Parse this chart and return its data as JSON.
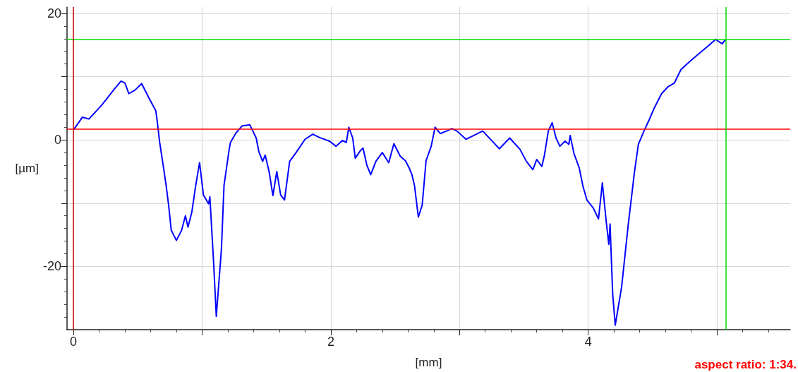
{
  "chart_data": {
    "type": "line",
    "xlabel": "[mm]",
    "ylabel": "[µm]",
    "xlim": [
      -0.05,
      5.57
    ],
    "ylim": [
      -30,
      21
    ],
    "xticks": [
      0,
      {
        "value": 1,
        "label": null
      },
      2,
      {
        "value": 3,
        "label": null
      },
      4,
      {
        "value": 5,
        "label": null
      }
    ],
    "yticks": [
      -20,
      {
        "value": -10,
        "label": null
      },
      0,
      {
        "value": 10,
        "label": null
      },
      20
    ],
    "grid": true,
    "marker": "none",
    "line_style": "solid",
    "series": [
      {
        "color": "#0000ff",
        "x": [
          0.005,
          0.07,
          0.12,
          0.22,
          0.32,
          0.37,
          0.4,
          0.43,
          0.48,
          0.53,
          0.59,
          0.64,
          0.65,
          0.67,
          0.7,
          0.72,
          0.74,
          0.76,
          0.8,
          0.84,
          0.87,
          0.89,
          0.92,
          0.95,
          0.98,
          1.01,
          1.05,
          1.06,
          1.09,
          1.11,
          1.15,
          1.17,
          1.21,
          1.22,
          1.26,
          1.31,
          1.37,
          1.42,
          1.44,
          1.47,
          1.49,
          1.52,
          1.55,
          1.58,
          1.61,
          1.64,
          1.68,
          1.73,
          1.8,
          1.86,
          1.91,
          1.99,
          2.04,
          2.09,
          2.12,
          2.14,
          2.17,
          2.19,
          2.23,
          2.25,
          2.28,
          2.31,
          2.35,
          2.4,
          2.45,
          2.49,
          2.54,
          2.58,
          2.61,
          2.63,
          2.65,
          2.68,
          2.71,
          2.74,
          2.78,
          2.81,
          2.85,
          2.9,
          2.94,
          2.98,
          3.05,
          3.18,
          3.25,
          3.31,
          3.39,
          3.47,
          3.52,
          3.57,
          3.6,
          3.64,
          3.66,
          3.69,
          3.72,
          3.75,
          3.78,
          3.82,
          3.85,
          3.86,
          3.89,
          3.93,
          3.96,
          3.99,
          4.04,
          4.08,
          4.11,
          4.14,
          4.16,
          4.17,
          4.19,
          4.21,
          4.26,
          4.31,
          4.36,
          4.39,
          4.44,
          4.47,
          4.51,
          4.57,
          4.62,
          4.67,
          4.72,
          4.79,
          4.87,
          4.93,
          4.99,
          5.04,
          5.07
        ],
        "values": [
          1.7,
          3.6,
          3.3,
          5.5,
          8.1,
          9.3,
          9.0,
          7.3,
          7.9,
          8.9,
          6.5,
          4.6,
          3.1,
          -0.4,
          -4.4,
          -7.2,
          -10.4,
          -14.3,
          -15.9,
          -14.3,
          -12.0,
          -13.8,
          -11.4,
          -7.2,
          -3.6,
          -8.7,
          -10.1,
          -9.0,
          -19.7,
          -27.9,
          -17.2,
          -7.2,
          -1.5,
          -0.4,
          1.0,
          2.2,
          2.4,
          0.3,
          -1.8,
          -3.4,
          -2.4,
          -5.0,
          -8.8,
          -5.0,
          -8.7,
          -9.5,
          -3.4,
          -2.0,
          0.1,
          0.9,
          0.4,
          -0.2,
          -1.0,
          -0.1,
          -0.4,
          2.0,
          0.3,
          -2.9,
          -1.7,
          -1.3,
          -4.0,
          -5.5,
          -3.4,
          -2.0,
          -3.6,
          -0.6,
          -2.6,
          -3.3,
          -4.5,
          -5.5,
          -7.2,
          -12.2,
          -10.3,
          -3.3,
          -1.0,
          2.0,
          1.0,
          1.4,
          1.8,
          1.4,
          0.1,
          1.4,
          -0.1,
          -1.4,
          0.3,
          -1.5,
          -3.4,
          -4.7,
          -3.1,
          -4.2,
          -2.4,
          1.4,
          2.7,
          0.3,
          -1.0,
          -0.2,
          -0.7,
          0.7,
          -2.2,
          -4.4,
          -7.4,
          -9.5,
          -10.8,
          -12.5,
          -6.8,
          -12.9,
          -16.5,
          -13.3,
          -24.3,
          -29.3,
          -23.2,
          -13.6,
          -5.0,
          -0.7,
          1.7,
          3.0,
          4.9,
          7.3,
          8.4,
          9.0,
          11.1,
          12.4,
          13.8,
          14.8,
          15.9,
          15.2,
          15.9
        ]
      }
    ],
    "ref_lines": [
      {
        "axis": "y",
        "value": 1.7,
        "color": "#ff0000"
      },
      {
        "axis": "y",
        "value": 15.9,
        "color": "#00dd00"
      },
      {
        "axis": "x",
        "value": 0,
        "color": "#cc0000"
      },
      {
        "axis": "x",
        "value": 5.07,
        "color": "#00dd00"
      }
    ],
    "annotations": [
      "aspect ratio: 1:34."
    ]
  }
}
